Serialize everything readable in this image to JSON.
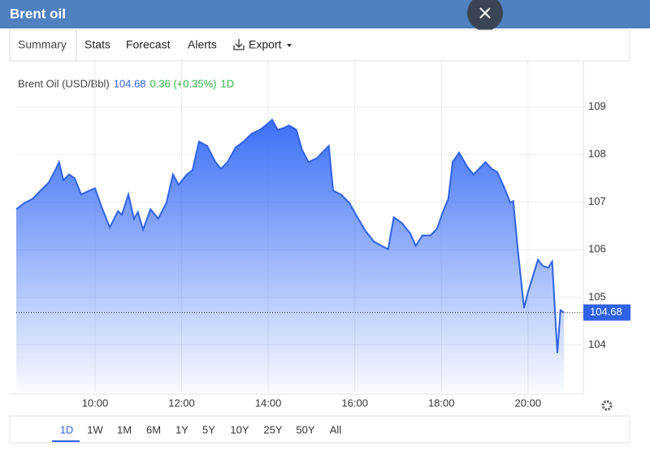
{
  "header": {
    "title": "Brent oil"
  },
  "tabs": [
    "Summary",
    "Stats",
    "Forecast",
    "Alerts",
    "Export"
  ],
  "quote": {
    "name": "Brent Oil (USD/Bbl)",
    "price": "104.68",
    "change": "0.36 (+0.35%)",
    "period": "1D"
  },
  "chart_data": {
    "type": "area",
    "x": [
      8.18,
      8.37,
      8.56,
      8.74,
      8.93,
      9.08,
      9.17,
      9.27,
      9.4,
      9.53,
      9.68,
      9.87,
      10.0,
      10.15,
      10.34,
      10.53,
      10.62,
      10.77,
      10.9,
      10.99,
      11.11,
      11.28,
      11.46,
      11.65,
      11.8,
      11.93,
      12.12,
      12.25,
      12.4,
      12.59,
      12.78,
      12.91,
      13.06,
      13.25,
      13.43,
      13.62,
      13.81,
      13.94,
      14.09,
      14.22,
      14.37,
      14.48,
      14.65,
      14.78,
      14.93,
      15.12,
      15.4,
      15.5,
      15.68,
      15.87,
      16.06,
      16.25,
      16.44,
      16.62,
      16.77,
      16.9,
      17.09,
      17.28,
      17.41,
      17.56,
      17.75,
      17.9,
      18.03,
      18.16,
      18.26,
      18.41,
      18.59,
      18.74,
      18.87,
      19.02,
      19.16,
      19.29,
      19.44,
      19.59,
      19.66,
      19.77,
      19.91,
      20.0,
      20.09,
      20.23,
      20.34,
      20.47,
      20.56,
      20.68,
      20.75,
      20.83
    ],
    "values": [
      106.85,
      106.98,
      107.07,
      107.24,
      107.41,
      107.67,
      107.84,
      107.46,
      107.58,
      107.5,
      107.16,
      107.24,
      107.29,
      106.9,
      106.47,
      106.81,
      106.73,
      107.16,
      106.65,
      106.79,
      106.42,
      106.85,
      106.65,
      106.99,
      107.58,
      107.36,
      107.58,
      107.67,
      108.27,
      108.18,
      107.84,
      107.7,
      107.84,
      108.15,
      108.27,
      108.44,
      108.52,
      108.61,
      108.73,
      108.52,
      108.56,
      108.61,
      108.52,
      108.1,
      107.84,
      107.92,
      108.18,
      107.24,
      107.16,
      106.99,
      106.68,
      106.39,
      106.17,
      106.08,
      106.01,
      106.68,
      106.56,
      106.34,
      106.08,
      106.3,
      106.3,
      106.44,
      106.78,
      107.07,
      107.84,
      108.04,
      107.75,
      107.58,
      107.7,
      107.84,
      107.7,
      107.63,
      107.33,
      106.99,
      107.02,
      105.96,
      104.77,
      105.11,
      105.37,
      105.79,
      105.66,
      105.62,
      105.75,
      103.83,
      104.73,
      104.68
    ],
    "color": "#2f62e6",
    "current_price": 104.68,
    "xlim": [
      8.18,
      21.28
    ],
    "ylim": [
      103,
      110
    ],
    "xticks": [
      {
        "value": 10,
        "label": "10:00"
      },
      {
        "value": 12,
        "label": "12:00"
      },
      {
        "value": 14,
        "label": "14:00"
      },
      {
        "value": 16,
        "label": "16:00"
      },
      {
        "value": 18,
        "label": "18:00"
      },
      {
        "value": 20,
        "label": "20:00"
      }
    ],
    "yticks": [
      104,
      105,
      106,
      107,
      108,
      109
    ],
    "grid": true
  },
  "ranges": [
    "1D",
    "1W",
    "1M",
    "6M",
    "1Y",
    "5Y",
    "10Y",
    "25Y",
    "50Y",
    "All"
  ]
}
